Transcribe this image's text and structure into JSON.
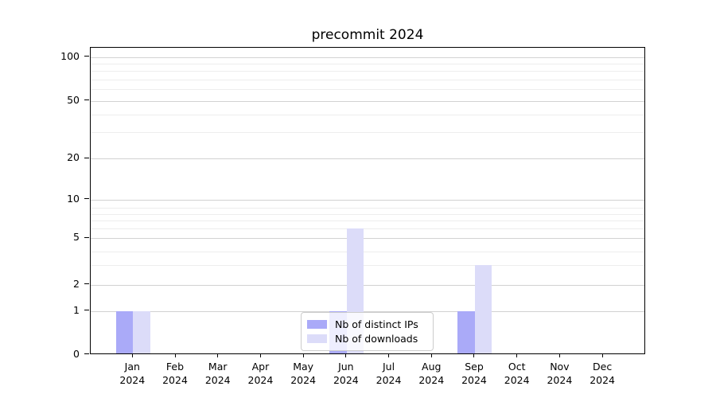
{
  "figure": {
    "title": "precommit 2024",
    "background": "#ffffff"
  },
  "chart_data": {
    "type": "bar",
    "title": "precommit 2024",
    "categories": [
      "Jan 2024",
      "Feb 2024",
      "Mar 2024",
      "Apr 2024",
      "May 2024",
      "Jun 2024",
      "Jul 2024",
      "Aug 2024",
      "Sep 2024",
      "Oct 2024",
      "Nov 2024",
      "Dec 2024"
    ],
    "series": [
      {
        "name": "Nb of distinct IPs",
        "color": "#aaaaf8",
        "values": [
          1,
          0,
          0,
          0,
          0,
          1,
          0,
          0,
          1,
          0,
          0,
          0
        ]
      },
      {
        "name": "Nb of downloads",
        "color": "#dcdcf9",
        "values": [
          1,
          0,
          0,
          0,
          0,
          6,
          0,
          0,
          3,
          0,
          0,
          0
        ]
      }
    ],
    "xlabel": "",
    "ylabel": "",
    "yticks": [
      0,
      1,
      2,
      5,
      10,
      20,
      50,
      100
    ],
    "ylim": [
      0,
      120
    ],
    "scale": "asinh-like (linear below 1, log-compressed above)",
    "grid": {
      "axis": "y",
      "major": true,
      "minor": true
    },
    "legend_position": "lower center"
  },
  "yaxis": {
    "tick_labels": [
      "0",
      "1",
      "2",
      "5",
      "10",
      "20",
      "50",
      "100"
    ]
  },
  "xaxis": {
    "ticks": [
      {
        "month": "Jan",
        "year": "2024"
      },
      {
        "month": "Feb",
        "year": "2024"
      },
      {
        "month": "Mar",
        "year": "2024"
      },
      {
        "month": "Apr",
        "year": "2024"
      },
      {
        "month": "May",
        "year": "2024"
      },
      {
        "month": "Jun",
        "year": "2024"
      },
      {
        "month": "Jul",
        "year": "2024"
      },
      {
        "month": "Aug",
        "year": "2024"
      },
      {
        "month": "Sep",
        "year": "2024"
      },
      {
        "month": "Oct",
        "year": "2024"
      },
      {
        "month": "Nov",
        "year": "2024"
      },
      {
        "month": "Dec",
        "year": "2024"
      }
    ]
  },
  "legend": {
    "items": [
      {
        "label": "Nb of distinct IPs",
        "color": "#aaaaf8"
      },
      {
        "label": "Nb of downloads",
        "color": "#dcdcf9"
      }
    ]
  }
}
